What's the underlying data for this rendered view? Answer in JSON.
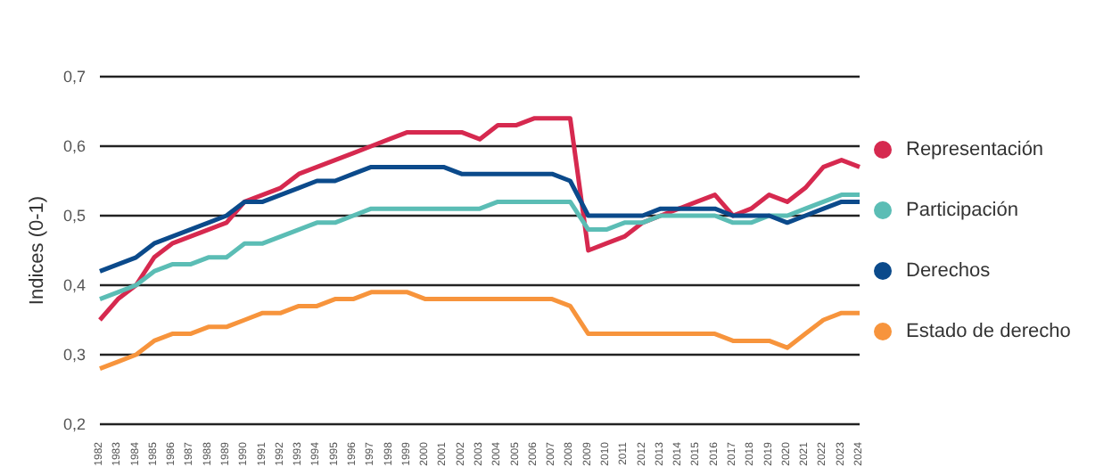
{
  "chart_data": {
    "type": "line",
    "ylabel": "Indices (0-1)",
    "categories": [
      "1982",
      "1983",
      "1984",
      "1985",
      "1986",
      "1987",
      "1988",
      "1989",
      "1990",
      "1991",
      "1992",
      "1993",
      "1994",
      "1995",
      "1996",
      "1997",
      "1998",
      "1999",
      "2000",
      "2001",
      "2002",
      "2003",
      "2004",
      "2005",
      "2006",
      "2007",
      "2008",
      "2009",
      "2010",
      "2011",
      "2012",
      "2013",
      "2014",
      "2015",
      "2016",
      "2017",
      "2018",
      "2019",
      "2020",
      "2021",
      "2022",
      "2023",
      "2024"
    ],
    "series": [
      {
        "name": "Representación",
        "color": "#d6294f",
        "values": [
          0.35,
          0.38,
          0.4,
          0.44,
          0.46,
          0.47,
          0.48,
          0.49,
          0.52,
          0.53,
          0.54,
          0.56,
          0.57,
          0.58,
          0.59,
          0.6,
          0.61,
          0.62,
          0.62,
          0.62,
          0.62,
          0.61,
          0.63,
          0.63,
          0.64,
          0.64,
          0.64,
          0.45,
          0.46,
          0.47,
          0.49,
          0.5,
          0.51,
          0.52,
          0.53,
          0.5,
          0.51,
          0.53,
          0.52,
          0.54,
          0.57,
          0.58,
          0.57
        ]
      },
      {
        "name": "Participación",
        "color": "#5bbdb5",
        "values": [
          0.38,
          0.39,
          0.4,
          0.42,
          0.43,
          0.43,
          0.44,
          0.44,
          0.46,
          0.46,
          0.47,
          0.48,
          0.49,
          0.49,
          0.5,
          0.51,
          0.51,
          0.51,
          0.51,
          0.51,
          0.51,
          0.51,
          0.52,
          0.52,
          0.52,
          0.52,
          0.52,
          0.48,
          0.48,
          0.49,
          0.49,
          0.5,
          0.5,
          0.5,
          0.5,
          0.49,
          0.49,
          0.5,
          0.5,
          0.51,
          0.52,
          0.53,
          0.53
        ]
      },
      {
        "name": "Derechos",
        "color": "#0b4a8b",
        "values": [
          0.42,
          0.43,
          0.44,
          0.46,
          0.47,
          0.48,
          0.49,
          0.5,
          0.52,
          0.52,
          0.53,
          0.54,
          0.55,
          0.55,
          0.56,
          0.57,
          0.57,
          0.57,
          0.57,
          0.57,
          0.56,
          0.56,
          0.56,
          0.56,
          0.56,
          0.56,
          0.55,
          0.5,
          0.5,
          0.5,
          0.5,
          0.51,
          0.51,
          0.51,
          0.51,
          0.5,
          0.5,
          0.5,
          0.49,
          0.5,
          0.51,
          0.52,
          0.52
        ]
      },
      {
        "name": "Estado de derecho",
        "color": "#f7943c",
        "values": [
          0.28,
          0.29,
          0.3,
          0.32,
          0.33,
          0.33,
          0.34,
          0.34,
          0.35,
          0.36,
          0.36,
          0.37,
          0.37,
          0.38,
          0.38,
          0.39,
          0.39,
          0.39,
          0.38,
          0.38,
          0.38,
          0.38,
          0.38,
          0.38,
          0.38,
          0.38,
          0.37,
          0.33,
          0.33,
          0.33,
          0.33,
          0.33,
          0.33,
          0.33,
          0.33,
          0.32,
          0.32,
          0.32,
          0.31,
          0.33,
          0.35,
          0.36,
          0.36
        ]
      }
    ],
    "ylim": [
      0.2,
      0.7
    ],
    "yticks": [
      {
        "value": 0.2,
        "label": "0,2"
      },
      {
        "value": 0.3,
        "label": "0,3"
      },
      {
        "value": 0.4,
        "label": "0,4"
      },
      {
        "value": 0.5,
        "label": "0,5"
      },
      {
        "value": 0.6,
        "label": "0,6"
      },
      {
        "value": 0.7,
        "label": "0,7"
      }
    ],
    "grid": "y",
    "legend": "right",
    "marker": "none",
    "line_style": "solid"
  }
}
